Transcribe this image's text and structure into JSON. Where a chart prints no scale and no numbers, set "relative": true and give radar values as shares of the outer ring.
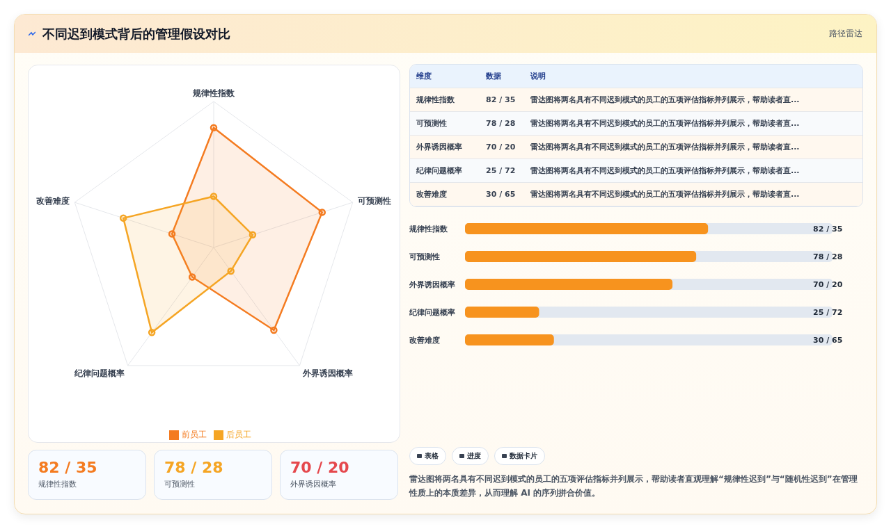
{
  "chart_data": [
    {
      "type": "radar",
      "title": "不同迟到模式背后的管理假设对比",
      "annotations": [
        "路径雷达"
      ],
      "categories": [
        "规律性指数",
        "可预测性",
        "外界诱因概率",
        "纪律问题概率",
        "改善难度"
      ],
      "series": [
        {
          "name": "前员工",
          "color": "#f47b20",
          "values": [
            0.82,
            0.78,
            0.7,
            0.25,
            0.3
          ]
        },
        {
          "name": "后员工",
          "color": "#f5a524",
          "values": [
            0.35,
            0.28,
            0.2,
            0.72,
            0.65
          ]
        }
      ],
      "relative": true,
      "legend": "bottom",
      "marker": "circle"
    },
    {
      "type": "other",
      "annotations": [
        "维度",
        "数据",
        "说明",
        "规律性指数",
        "82 / 35",
        "雷达图将两名具有不同迟到模式的员工的五项评估指标并列展示，帮助读者直...",
        "可预测性",
        "78 / 28",
        "雷达图将两名具有不同迟到模式的员工的五项评估指标并列展示，帮助读者直...",
        "外界诱因概率",
        "70 / 20",
        "雷达图将两名具有不同迟到模式的员工的五项评估指标并列展示，帮助读者直...",
        "纪律问题概率",
        "25 / 72",
        "雷达图将两名具有不同迟到模式的员工的五项评估指标并列展示，帮助读者直...",
        "改善难度",
        "30 / 65",
        "雷达图将两名具有不同迟到模式的员工的五项评估指标并列展示，帮助读者直..."
      ]
    },
    {
      "type": "bar",
      "orientation": "horizontal",
      "categories": [
        "规律性指数",
        "可预测性",
        "外界诱因概率",
        "纪律问题概率",
        "改善难度"
      ],
      "values": [
        82,
        78,
        70,
        25,
        30
      ],
      "color": "#f7931e",
      "xlim": [
        0,
        124
      ],
      "tick_labels": "y",
      "value_labels": [
        "82 / 35",
        "78 / 28",
        "70 / 20",
        "25 / 72",
        "30 / 65"
      ]
    },
    {
      "type": "other",
      "annotations": [
        "82 / 35",
        "规律性指数",
        "78 / 28",
        "可预测性",
        "70 / 20",
        "外界诱因概率"
      ],
      "colors": [
        "#f47b20",
        "#f5a524",
        "#e5484d"
      ]
    },
    {
      "type": "other",
      "annotations": [
        "表格",
        "进度",
        "数据卡片",
        "雷达图将两名具有不同迟到模式的员工的五项评估指标并列展示，帮助读者直观理解“规律性迟到”与“随机性迟到”在管理性质上的本质差异，从而理解 AI 的序列拼合价值。"
      ]
    }
  ]
}
